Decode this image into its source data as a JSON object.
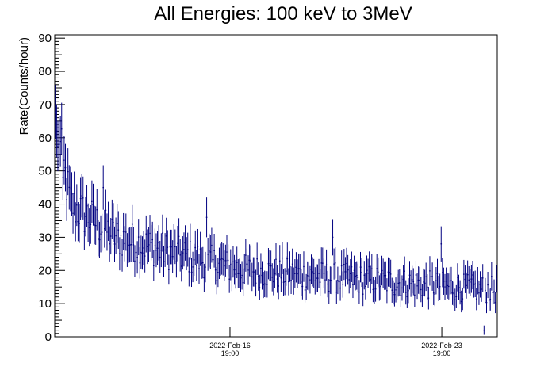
{
  "chart_data": {
    "type": "scatter",
    "title": "All Energies:  100 keV to 3MeV",
    "ylabel": "Rate(Counts/hour)",
    "xlabel": "",
    "ylim": [
      0,
      91
    ],
    "xlim": [
      "2022-Feb-11 00:00",
      "2022-Feb-25 15:00"
    ],
    "ytick_labels": [
      "0",
      "10",
      "20",
      "30",
      "40",
      "50",
      "60",
      "70",
      "80",
      "90"
    ],
    "xtick_labels": [
      {
        "date": "2022-Feb-16",
        "time": "19:00"
      },
      {
        "date": "2022-Feb-23",
        "time": "19:00"
      }
    ],
    "grid": false,
    "marker_color": "#000080",
    "error_bar_color": "#000080",
    "binning": "hourly",
    "series": [
      {
        "decay_profile": [
          {
            "hours_from_start": 0,
            "rate": 65
          },
          {
            "hours_from_start": 12,
            "rate": 40
          },
          {
            "hours_from_start": 48,
            "rate": 30
          },
          {
            "hours_from_start": 96,
            "rate": 25
          },
          {
            "hours_from_start": 150,
            "rate": 20
          },
          {
            "hours_from_start": 250,
            "rate": 17
          },
          {
            "hours_from_start": 350,
            "rate": 14
          }
        ],
        "notable_points": [
          {
            "hours_from_start": 1,
            "rate": 62
          },
          {
            "hours_from_start": 3,
            "rate": 58
          },
          {
            "hours_from_start": 6,
            "rate": 48
          },
          {
            "hours_from_start": 38,
            "rate": 45
          },
          {
            "hours_from_start": 120,
            "rate": 36
          },
          {
            "hours_from_start": 220,
            "rate": 30
          },
          {
            "hours_from_start": 306,
            "rate": 28
          },
          {
            "hours_from_start": 340,
            "rate": 2
          }
        ]
      }
    ]
  }
}
